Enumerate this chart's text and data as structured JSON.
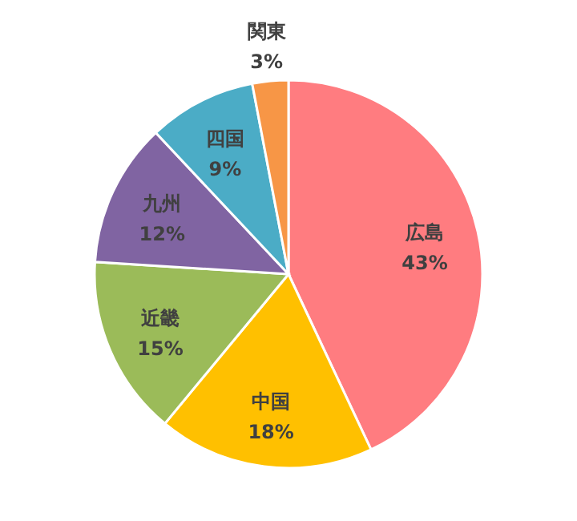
{
  "chart_data": {
    "type": "pie",
    "categories": [
      "広島",
      "中国",
      "近畿",
      "九州",
      "四国",
      "関東"
    ],
    "values": [
      43,
      18,
      15,
      12,
      9,
      3
    ],
    "colors": [
      "#ff7c80",
      "#ffc000",
      "#9bbb59",
      "#8064a2",
      "#4bacc6",
      "#f79646"
    ],
    "value_labels": [
      "43%",
      "18%",
      "15%",
      "12%",
      "9%",
      "3%"
    ],
    "legend": false
  }
}
